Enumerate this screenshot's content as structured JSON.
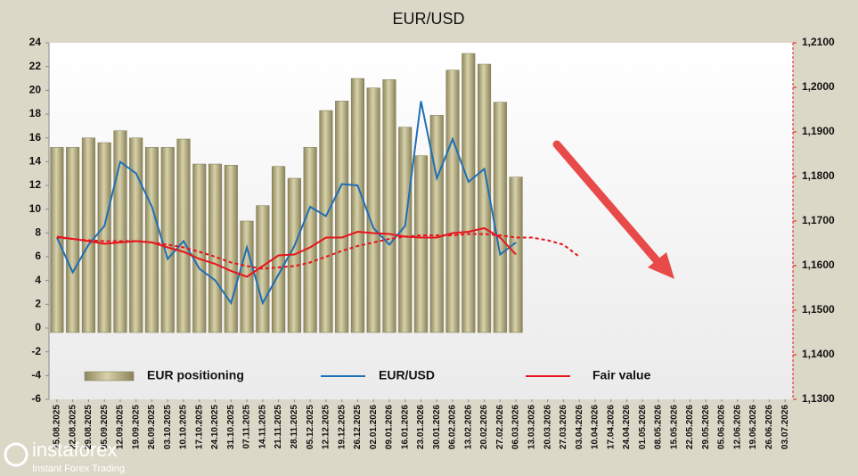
{
  "chart_data": {
    "type": "bar",
    "title": "EUR/USD",
    "categories": [
      "15.08.2025",
      "22.08.2025",
      "29.08.2025",
      "05.09.2025",
      "12.09.2025",
      "19.09.2025",
      "26.09.2025",
      "03.10.2025",
      "10.10.2025",
      "17.10.2025",
      "24.10.2025",
      "31.10.2025",
      "07.11.2025",
      "14.11.2025",
      "21.11.2025",
      "28.11.2025",
      "05.12.2025",
      "12.12.2025",
      "19.12.2025",
      "26.12.2025",
      "02.01.2026",
      "09.01.2026",
      "16.01.2026",
      "23.01.2026",
      "30.01.2026",
      "06.02.2026",
      "13.02.2026",
      "20.02.2026",
      "27.02.2026",
      "06.03.2026",
      "13.03.2026",
      "20.03.2026",
      "27.03.2026",
      "03.04.2026",
      "10.04.2026",
      "17.04.2026",
      "24.04.2026",
      "01.05.2026",
      "08.05.2026",
      "15.05.2026",
      "22.05.2026",
      "29.05.2026",
      "05.06.2026",
      "12.06.2026",
      "19.06.2026",
      "26.06.2026",
      "03.07.2026"
    ],
    "series": [
      {
        "name": "EUR positioning",
        "type": "bar",
        "color": "#bdb68c",
        "axis": "y",
        "values": [
          15.2,
          15.2,
          16.0,
          15.6,
          16.6,
          16.0,
          15.2,
          15.2,
          15.9,
          13.8,
          13.8,
          13.7,
          9.0,
          10.3,
          13.6,
          12.6,
          15.2,
          18.3,
          19.1,
          21.0,
          20.2,
          20.9,
          16.9,
          14.5,
          17.9,
          21.7,
          23.1,
          22.2,
          19.0,
          12.7,
          null,
          null,
          null,
          null,
          null,
          null,
          null,
          null,
          null,
          null,
          null,
          null,
          null,
          null,
          null,
          null,
          null
        ]
      },
      {
        "name": "EUR/USD",
        "type": "line",
        "color": "#1f6fb5",
        "axis": "y2",
        "values": [
          1.1663,
          1.1585,
          1.1647,
          1.1689,
          1.1833,
          1.1807,
          1.1732,
          1.1615,
          1.1655,
          1.1593,
          1.1567,
          1.1516,
          1.1641,
          1.1516,
          1.158,
          1.1644,
          1.1732,
          1.1711,
          1.1783,
          1.178,
          1.1684,
          1.1647,
          1.1689,
          1.1969,
          1.1796,
          1.1884,
          1.1788,
          1.1817,
          1.1625,
          1.1652,
          null,
          null,
          null,
          null,
          null,
          null,
          null,
          null,
          null,
          null,
          null,
          null,
          null,
          null,
          null,
          null,
          null
        ]
      },
      {
        "name": "Fair value",
        "type": "line",
        "color": "#e8141c",
        "axis": "y2",
        "values": [
          1.1665,
          1.166,
          1.1655,
          1.1649,
          1.1652,
          1.1655,
          1.1652,
          1.1641,
          1.1631,
          1.1615,
          1.1604,
          1.1588,
          1.1575,
          1.1599,
          1.1623,
          1.1625,
          1.1641,
          1.1663,
          1.1663,
          1.1676,
          1.1673,
          1.1671,
          1.1665,
          1.1663,
          1.1663,
          1.1673,
          1.1676,
          1.1684,
          1.1663,
          1.1625,
          null,
          null,
          null,
          null,
          null,
          null,
          null,
          null,
          null,
          null,
          null,
          null,
          null,
          null,
          null,
          null,
          null
        ]
      },
      {
        "type": "line",
        "dash": true,
        "color": "#e8141c",
        "axis": "y2",
        "values": [
          1.1663,
          1.166,
          1.1657,
          1.1655,
          1.1655,
          1.1655,
          1.1652,
          1.1647,
          1.1641,
          1.1631,
          1.162,
          1.1607,
          1.1599,
          1.1593,
          1.1596,
          1.1599,
          1.1607,
          1.162,
          1.1633,
          1.1644,
          1.1652,
          1.166,
          1.1665,
          1.1668,
          1.1668,
          1.1668,
          1.1671,
          1.1671,
          1.1668,
          1.1663,
          1.1663,
          1.1657,
          1.1647,
          1.162,
          null,
          null,
          null,
          null,
          null,
          null,
          null,
          null,
          null,
          null,
          null,
          null,
          null
        ]
      }
    ],
    "ylim": [
      -6,
      24
    ],
    "yticks": [
      -6,
      -4,
      -2,
      0,
      2,
      4,
      6,
      8,
      10,
      12,
      14,
      16,
      18,
      20,
      22,
      24
    ],
    "y2lim": [
      1.13,
      1.21
    ],
    "y2ticks": [
      {
        "value": 1.13,
        "label": "1,1300"
      },
      {
        "value": 1.14,
        "label": "1,1400"
      },
      {
        "value": 1.15,
        "label": "1,1500"
      },
      {
        "value": 1.16,
        "label": "1,1600"
      },
      {
        "value": 1.17,
        "label": "1,1700"
      },
      {
        "value": 1.18,
        "label": "1,1800"
      },
      {
        "value": 1.19,
        "label": "1,1900"
      },
      {
        "value": 1.2,
        "label": "1,2000"
      },
      {
        "value": 1.21,
        "label": "1,2100"
      }
    ],
    "legend": "bottom",
    "watermark": {
      "brand": "instaforex",
      "tagline": "Instant Forex Trading"
    }
  }
}
